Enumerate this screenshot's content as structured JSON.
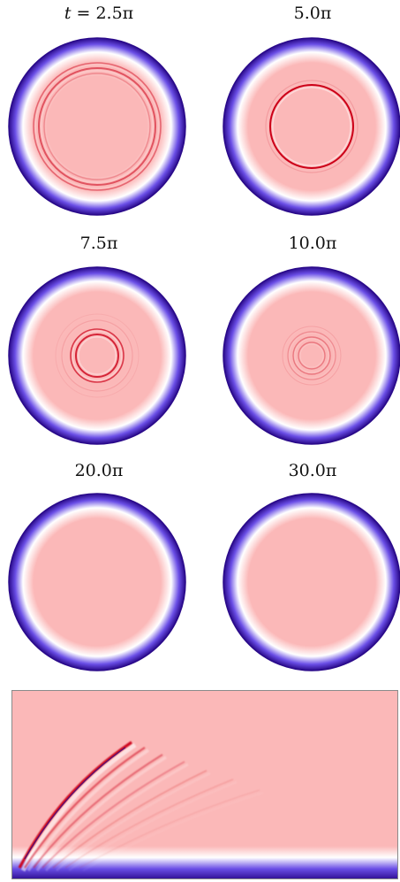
{
  "figure": {
    "panels": [
      {
        "id": "p1",
        "label_prefix": "t = ",
        "label_value": "2.5π",
        "rings": [
          {
            "r": 0.66,
            "w": 0.02,
            "s": 0.55
          },
          {
            "r": 0.72,
            "w": 0.016,
            "s": 0.45
          },
          {
            "r": 0.6,
            "w": 0.014,
            "s": 0.25
          }
        ]
      },
      {
        "id": "p2",
        "label_prefix": "",
        "label_value": "5.0π",
        "rings": [
          {
            "r": 0.47,
            "w": 0.02,
            "s": 1.0
          },
          {
            "r": 0.52,
            "w": 0.012,
            "s": 0.15
          }
        ]
      },
      {
        "id": "p3",
        "label_prefix": "",
        "label_value": "7.5π",
        "rings": [
          {
            "r": 0.24,
            "w": 0.02,
            "s": 0.8
          },
          {
            "r": 0.3,
            "w": 0.016,
            "s": 0.7
          },
          {
            "r": 0.4,
            "w": 0.012,
            "s": 0.12
          },
          {
            "r": 0.47,
            "w": 0.01,
            "s": 0.07
          }
        ]
      },
      {
        "id": "p4",
        "label_prefix": "",
        "label_value": "10.0π",
        "rings": [
          {
            "r": 0.15,
            "w": 0.014,
            "s": 0.35
          },
          {
            "r": 0.21,
            "w": 0.014,
            "s": 0.35
          },
          {
            "r": 0.27,
            "w": 0.012,
            "s": 0.25
          },
          {
            "r": 0.33,
            "w": 0.01,
            "s": 0.12
          }
        ]
      },
      {
        "id": "p5",
        "label_prefix": "",
        "label_value": "20.0π",
        "rings": []
      },
      {
        "id": "p6",
        "label_prefix": "",
        "label_value": "30.0π",
        "rings": []
      }
    ],
    "colors": {
      "background": "#fbb8b8",
      "ring": "#cc0018",
      "edge_dark": "#2a0a8a",
      "edge_mid": "#6a4ee6",
      "edge_light": "#ffffff"
    }
  }
}
